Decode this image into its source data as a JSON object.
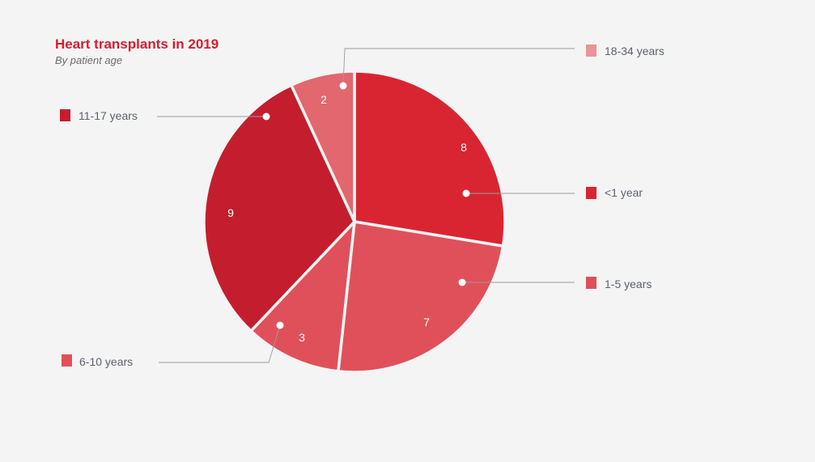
{
  "header": {
    "title": "Heart transplants in 2019",
    "subtitle": "By patient age"
  },
  "chart_data": {
    "type": "pie",
    "title": "Heart transplants in 2019",
    "subtitle": "By patient age",
    "start_angle_deg": 0,
    "direction": "clockwise",
    "slices": [
      {
        "label": "<1 year",
        "value": 8,
        "color": "#d92531"
      },
      {
        "label": "1-5 years",
        "value": 7,
        "color": "#e0505a"
      },
      {
        "label": "6-10 years",
        "value": 3,
        "color": "#e0505a"
      },
      {
        "label": "11-17 years",
        "value": 9,
        "color": "#c41e2e"
      },
      {
        "label": "18-34 years",
        "value": 2,
        "color": "#e2676e"
      }
    ],
    "legend_swatches": [
      "#d92531",
      "#e0505a",
      "#e0505a",
      "#c41e2e",
      "#e8949a"
    ]
  }
}
